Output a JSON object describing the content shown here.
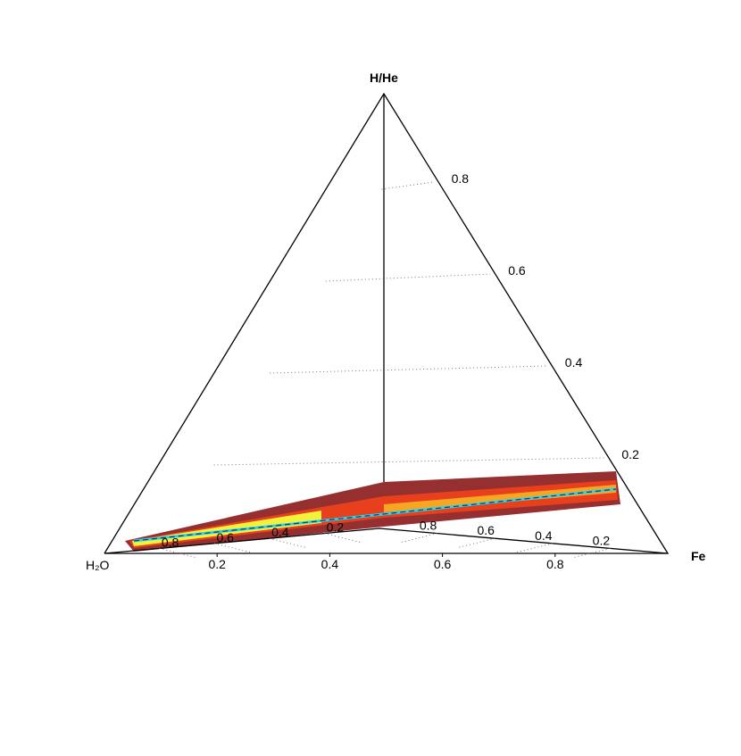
{
  "chart_data": {
    "type": "ternary",
    "vertices": {
      "top": "H/He",
      "left": "H₂O",
      "right": "Fe"
    },
    "right_ticks": [
      0.2,
      0.4,
      0.6,
      0.8
    ],
    "bottom_ticks": [
      0.2,
      0.4,
      0.6,
      0.8
    ],
    "back_right_ticks": [
      0.8,
      0.6,
      0.4,
      0.2
    ],
    "back_left_ticks": [
      0.8,
      0.6,
      0.4,
      0.2
    ],
    "grid": true
  }
}
